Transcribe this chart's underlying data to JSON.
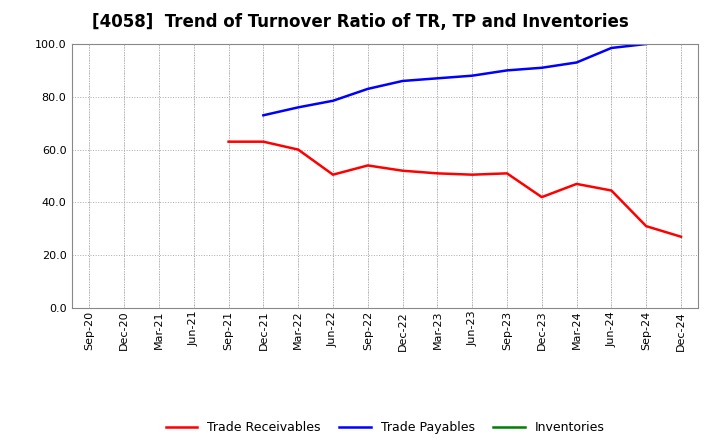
{
  "title": "[4058]  Trend of Turnover Ratio of TR, TP and Inventories",
  "x_labels": [
    "Sep-20",
    "Dec-20",
    "Mar-21",
    "Jun-21",
    "Sep-21",
    "Dec-21",
    "Mar-22",
    "Jun-22",
    "Sep-22",
    "Dec-22",
    "Mar-23",
    "Jun-23",
    "Sep-23",
    "Dec-23",
    "Mar-24",
    "Jun-24",
    "Sep-24",
    "Dec-24"
  ],
  "trade_receivables": {
    "x_indices": [
      4,
      5,
      6,
      7,
      8,
      9,
      10,
      11,
      12,
      13,
      14,
      15,
      16,
      17
    ],
    "values": [
      63.0,
      63.0,
      60.0,
      50.5,
      54.0,
      52.0,
      51.0,
      50.5,
      51.0,
      42.0,
      47.0,
      44.5,
      31.0,
      27.0
    ],
    "color": "#ff0000",
    "label": "Trade Receivables"
  },
  "trade_payables": {
    "x_indices": [
      5,
      6,
      7,
      8,
      9,
      10,
      11,
      12,
      13,
      14,
      15,
      16
    ],
    "values": [
      73.0,
      76.0,
      78.5,
      83.0,
      86.0,
      87.0,
      88.0,
      90.0,
      91.0,
      93.0,
      98.5,
      100.0
    ],
    "color": "#0000ff",
    "label": "Trade Payables"
  },
  "inventories": {
    "x_indices": [],
    "values": [],
    "color": "#008000",
    "label": "Inventories"
  },
  "ylim": [
    0.0,
    100.0
  ],
  "yticks": [
    0.0,
    20.0,
    40.0,
    60.0,
    80.0,
    100.0
  ],
  "background_color": "#ffffff",
  "grid_color": "#aaaaaa",
  "title_fontsize": 12,
  "legend_fontsize": 9,
  "tick_fontsize": 8,
  "line_width": 1.8
}
